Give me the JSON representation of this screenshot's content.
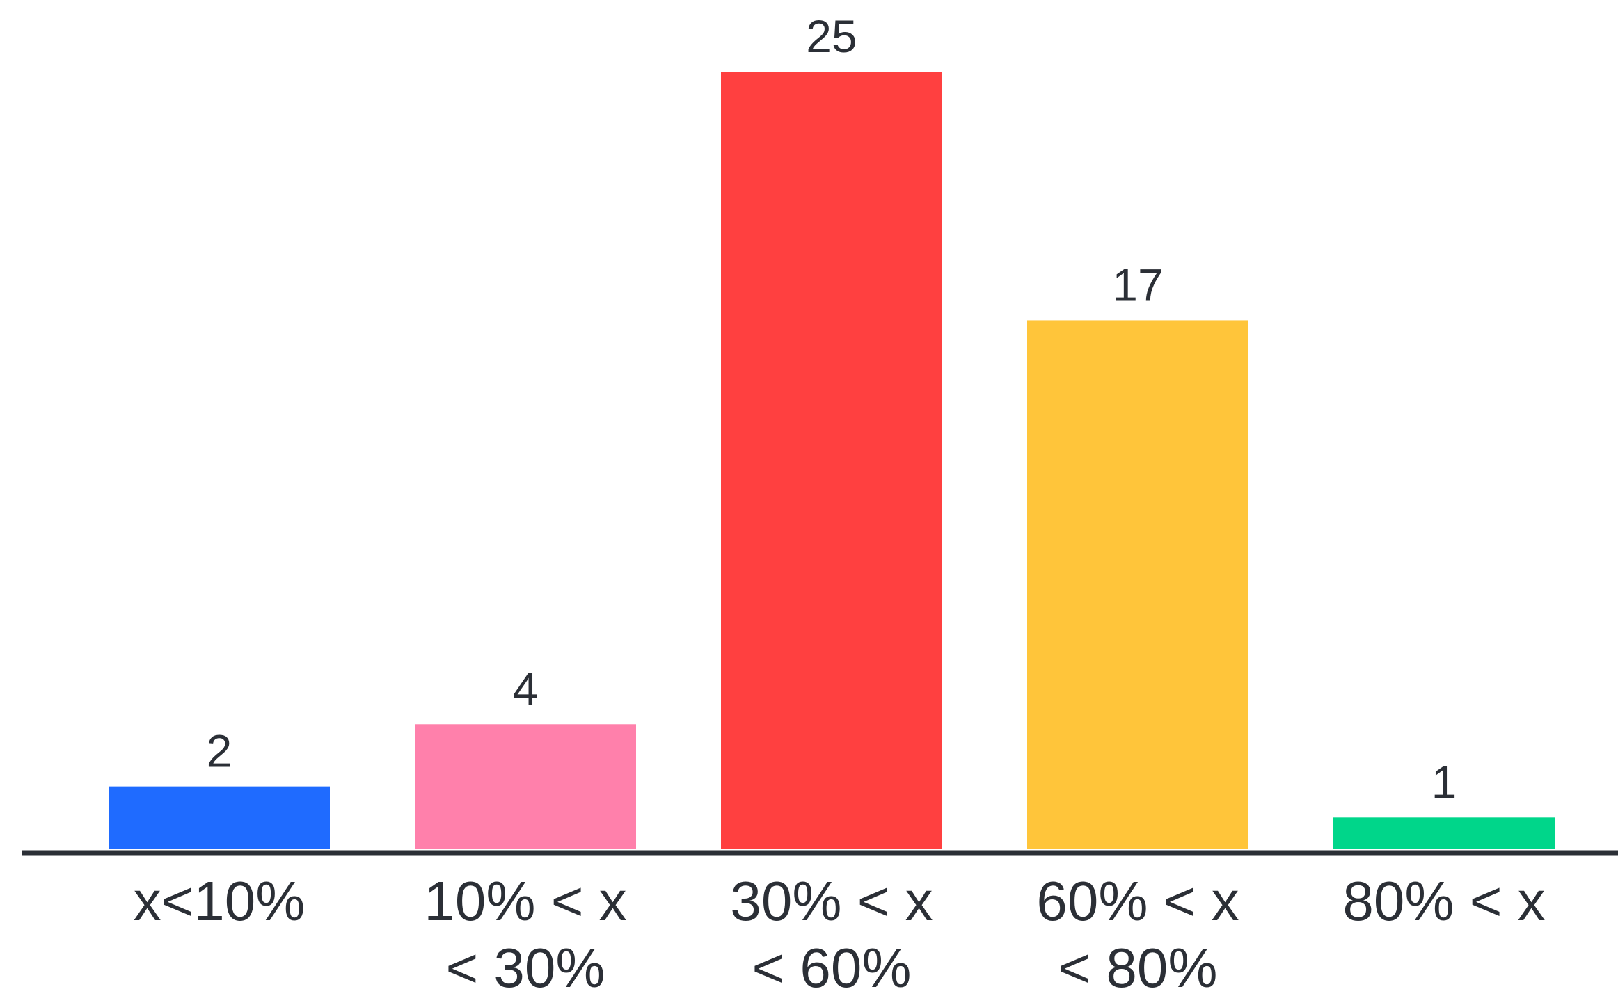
{
  "chart_data": {
    "type": "bar",
    "categories": [
      [
        "x<10%"
      ],
      [
        "10% < x",
        "< 30%"
      ],
      [
        "30% < x",
        "< 60%"
      ],
      [
        "60% < x",
        "< 80%"
      ],
      [
        "80% < x"
      ]
    ],
    "values": [
      2,
      4,
      25,
      17,
      1
    ],
    "data_labels": [
      "2",
      "4",
      "25",
      "17",
      "1"
    ],
    "colors": [
      "#1f6bff",
      "#ff80ab",
      "#ff4040",
      "#ffc53a",
      "#00d68a"
    ],
    "axis_color": "#2b2f36",
    "title": "",
    "xlabel": "",
    "ylabel": "",
    "ylim": [
      0,
      25
    ],
    "grid": false,
    "legend": "none"
  }
}
